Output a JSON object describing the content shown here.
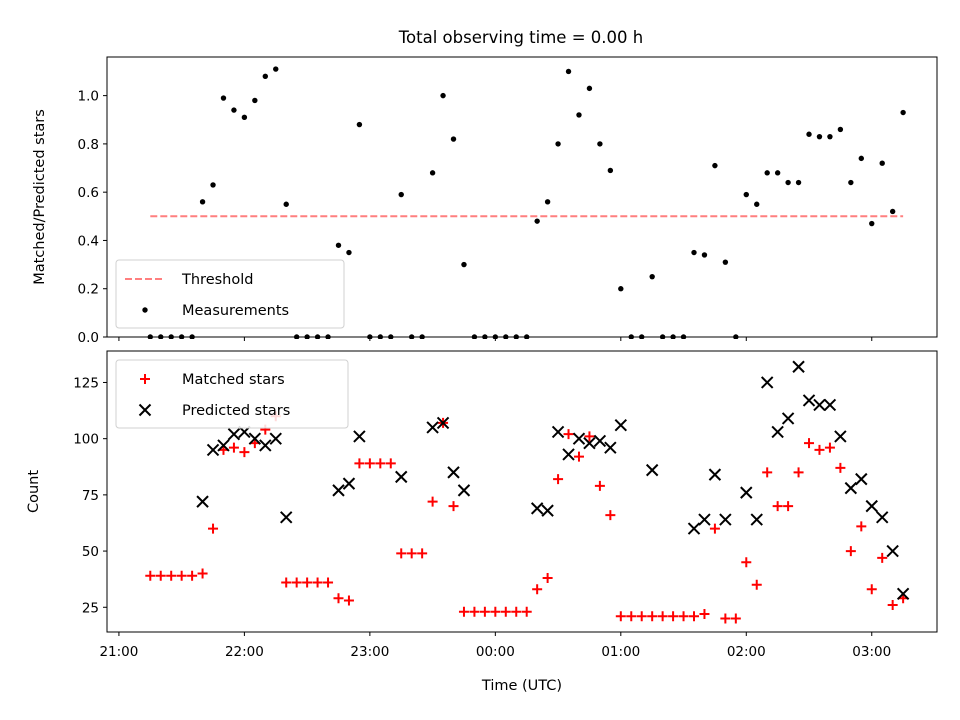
{
  "chart_data": [
    {
      "type": "scatter",
      "title": "Total observing time = 0.00 h",
      "ylabel": "Matched/Predicted stars",
      "xlabel": "",
      "ylim": [
        0,
        1.16
      ],
      "yticks": [
        "0.0",
        "0.2",
        "0.4",
        "0.6",
        "0.8",
        "1.0"
      ],
      "legend_position": "lower-left",
      "threshold": {
        "name": "Threshold",
        "value": 0.5,
        "x_range": [
          "21:15",
          "03:15"
        ],
        "color": "#ff7f7f",
        "style": "dashed"
      },
      "series": [
        {
          "name": "Measurements",
          "color": "#000000",
          "marker": "dot",
          "points": [
            [
              "21:15",
              0
            ],
            [
              "21:20",
              0
            ],
            [
              "21:25",
              0
            ],
            [
              "21:30",
              0
            ],
            [
              "21:35",
              0
            ],
            [
              "21:40",
              0.56
            ],
            [
              "21:45",
              0.63
            ],
            [
              "21:50",
              0.99
            ],
            [
              "21:55",
              0.94
            ],
            [
              "22:00",
              0.91
            ],
            [
              "22:05",
              0.98
            ],
            [
              "22:10",
              1.08
            ],
            [
              "22:15",
              1.11
            ],
            [
              "22:20",
              0.55
            ],
            [
              "22:25",
              0
            ],
            [
              "22:30",
              0
            ],
            [
              "22:35",
              0
            ],
            [
              "22:40",
              0
            ],
            [
              "22:45",
              0.38
            ],
            [
              "22:50",
              0.35
            ],
            [
              "22:55",
              0.88
            ],
            [
              "23:00",
              0
            ],
            [
              "23:05",
              0
            ],
            [
              "23:10",
              0
            ],
            [
              "23:15",
              0.59
            ],
            [
              "23:20",
              0
            ],
            [
              "23:25",
              0
            ],
            [
              "23:30",
              0.68
            ],
            [
              "23:35",
              1.0
            ],
            [
              "23:40",
              0.82
            ],
            [
              "23:45",
              0.3
            ],
            [
              "23:50",
              0
            ],
            [
              "23:55",
              0
            ],
            [
              "00:00",
              0
            ],
            [
              "00:05",
              0
            ],
            [
              "00:10",
              0
            ],
            [
              "00:15",
              0
            ],
            [
              "00:20",
              0.48
            ],
            [
              "00:25",
              0.56
            ],
            [
              "00:30",
              0.8
            ],
            [
              "00:35",
              1.1
            ],
            [
              "00:40",
              0.92
            ],
            [
              "00:45",
              1.03
            ],
            [
              "00:50",
              0.8
            ],
            [
              "00:55",
              0.69
            ],
            [
              "01:00",
              0.2
            ],
            [
              "01:05",
              0
            ],
            [
              "01:10",
              0
            ],
            [
              "01:15",
              0.25
            ],
            [
              "01:20",
              0
            ],
            [
              "01:25",
              0
            ],
            [
              "01:30",
              0
            ],
            [
              "01:35",
              0.35
            ],
            [
              "01:40",
              0.34
            ],
            [
              "01:45",
              0.71
            ],
            [
              "01:50",
              0.31
            ],
            [
              "01:55",
              0
            ],
            [
              "02:00",
              0.59
            ],
            [
              "02:05",
              0.55
            ],
            [
              "02:10",
              0.68
            ],
            [
              "02:15",
              0.68
            ],
            [
              "02:20",
              0.64
            ],
            [
              "02:25",
              0.64
            ],
            [
              "02:30",
              0.84
            ],
            [
              "02:35",
              0.83
            ],
            [
              "02:40",
              0.83
            ],
            [
              "02:45",
              0.86
            ],
            [
              "02:50",
              0.64
            ],
            [
              "02:55",
              0.74
            ],
            [
              "03:00",
              0.47
            ],
            [
              "03:05",
              0.72
            ],
            [
              "03:10",
              0.52
            ],
            [
              "03:15",
              0.93
            ]
          ]
        }
      ]
    },
    {
      "type": "scatter",
      "title": "",
      "ylabel": "Count",
      "xlabel": "Time (UTC)",
      "ylim": [
        14,
        139
      ],
      "yticks": [
        "25",
        "50",
        "75",
        "100",
        "125"
      ],
      "xticks": [
        "21:00",
        "22:00",
        "23:00",
        "00:00",
        "01:00",
        "02:00",
        "03:00"
      ],
      "legend_position": "upper-left",
      "series": [
        {
          "name": "Matched stars",
          "color": "#ff0000",
          "marker": "plus",
          "points": [
            [
              "21:15",
              39
            ],
            [
              "21:20",
              39
            ],
            [
              "21:25",
              39
            ],
            [
              "21:30",
              39
            ],
            [
              "21:35",
              39
            ],
            [
              "21:40",
              40
            ],
            [
              "21:45",
              60
            ],
            [
              "21:50",
              95
            ],
            [
              "21:55",
              96
            ],
            [
              "22:00",
              94
            ],
            [
              "22:05",
              98
            ],
            [
              "22:10",
              104
            ],
            [
              "22:15",
              110
            ],
            [
              "22:20",
              36
            ],
            [
              "22:25",
              36
            ],
            [
              "22:30",
              36
            ],
            [
              "22:35",
              36
            ],
            [
              "22:40",
              36
            ],
            [
              "22:45",
              29
            ],
            [
              "22:50",
              28
            ],
            [
              "22:55",
              89
            ],
            [
              "23:00",
              89
            ],
            [
              "23:05",
              89
            ],
            [
              "23:10",
              89
            ],
            [
              "23:15",
              49
            ],
            [
              "23:20",
              49
            ],
            [
              "23:25",
              49
            ],
            [
              "23:30",
              72
            ],
            [
              "23:35",
              107
            ],
            [
              "23:40",
              70
            ],
            [
              "23:45",
              23
            ],
            [
              "23:50",
              23
            ],
            [
              "23:55",
              23
            ],
            [
              "00:00",
              23
            ],
            [
              "00:05",
              23
            ],
            [
              "00:10",
              23
            ],
            [
              "00:15",
              23
            ],
            [
              "00:20",
              33
            ],
            [
              "00:25",
              38
            ],
            [
              "00:30",
              82
            ],
            [
              "00:35",
              102
            ],
            [
              "00:40",
              92
            ],
            [
              "00:45",
              101
            ],
            [
              "00:50",
              79
            ],
            [
              "00:55",
              66
            ],
            [
              "01:00",
              21
            ],
            [
              "01:05",
              21
            ],
            [
              "01:10",
              21
            ],
            [
              "01:15",
              21
            ],
            [
              "01:20",
              21
            ],
            [
              "01:25",
              21
            ],
            [
              "01:30",
              21
            ],
            [
              "01:35",
              21
            ],
            [
              "01:40",
              22
            ],
            [
              "01:45",
              60
            ],
            [
              "01:50",
              20
            ],
            [
              "01:55",
              20
            ],
            [
              "02:00",
              45
            ],
            [
              "02:05",
              35
            ],
            [
              "02:10",
              85
            ],
            [
              "02:15",
              70
            ],
            [
              "02:20",
              70
            ],
            [
              "02:25",
              85
            ],
            [
              "02:30",
              98
            ],
            [
              "02:35",
              95
            ],
            [
              "02:40",
              96
            ],
            [
              "02:45",
              87
            ],
            [
              "02:50",
              50
            ],
            [
              "02:55",
              61
            ],
            [
              "03:00",
              33
            ],
            [
              "03:05",
              47
            ],
            [
              "03:10",
              26
            ],
            [
              "03:15",
              29
            ]
          ]
        },
        {
          "name": "Predicted stars",
          "color": "#000000",
          "marker": "x",
          "points": [
            [
              "21:40",
              72
            ],
            [
              "21:45",
              95
            ],
            [
              "21:50",
              97
            ],
            [
              "21:55",
              102
            ],
            [
              "22:00",
              103
            ],
            [
              "22:05",
              100
            ],
            [
              "22:10",
              97
            ],
            [
              "22:15",
              100
            ],
            [
              "22:20",
              65
            ],
            [
              "22:45",
              77
            ],
            [
              "22:50",
              80
            ],
            [
              "22:55",
              101
            ],
            [
              "23:15",
              83
            ],
            [
              "23:30",
              105
            ],
            [
              "23:35",
              107
            ],
            [
              "23:40",
              85
            ],
            [
              "23:45",
              77
            ],
            [
              "00:20",
              69
            ],
            [
              "00:25",
              68
            ],
            [
              "00:30",
              103
            ],
            [
              "00:35",
              93
            ],
            [
              "00:40",
              100
            ],
            [
              "00:45",
              98
            ],
            [
              "00:50",
              99
            ],
            [
              "00:55",
              96
            ],
            [
              "01:00",
              106
            ],
            [
              "01:15",
              86
            ],
            [
              "01:35",
              60
            ],
            [
              "01:40",
              64
            ],
            [
              "01:45",
              84
            ],
            [
              "01:50",
              64
            ],
            [
              "02:00",
              76
            ],
            [
              "02:05",
              64
            ],
            [
              "02:10",
              125
            ],
            [
              "02:15",
              103
            ],
            [
              "02:20",
              109
            ],
            [
              "02:25",
              132
            ],
            [
              "02:30",
              117
            ],
            [
              "02:35",
              115
            ],
            [
              "02:40",
              115
            ],
            [
              "02:45",
              101
            ],
            [
              "02:50",
              78
            ],
            [
              "02:55",
              82
            ],
            [
              "03:00",
              70
            ],
            [
              "03:05",
              65
            ],
            [
              "03:10",
              50
            ],
            [
              "03:15",
              31
            ]
          ]
        }
      ]
    }
  ]
}
